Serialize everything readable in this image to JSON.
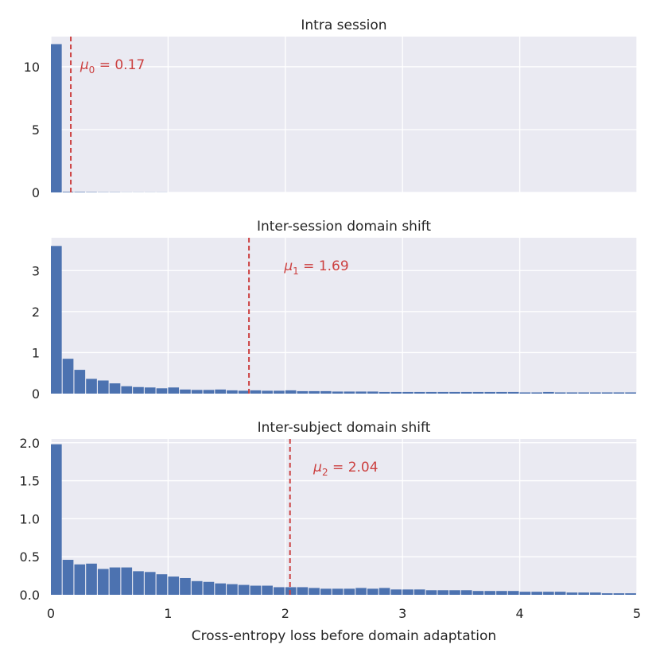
{
  "chart_data": {
    "type": "bar",
    "xlabel": "Cross-entropy loss before domain adaptation",
    "xlim": [
      0,
      5
    ],
    "x_ticks": [
      "0",
      "1",
      "2",
      "3",
      "4",
      "5"
    ],
    "bin_width": 0.1,
    "colors": {
      "bar": "#4c72b0",
      "mean_line": "#cc4141",
      "panel_bg": "#eaeaf2",
      "grid": "#ffffff"
    },
    "panels": [
      {
        "title": "Intra session",
        "ylim": [
          0,
          12.4
        ],
        "y_ticks": [
          {
            "value": 0,
            "label": "0"
          },
          {
            "value": 5,
            "label": "5"
          },
          {
            "value": 10,
            "label": "10"
          }
        ],
        "mean": 0.17,
        "mean_label": {
          "symbol": "μ",
          "sub": "0",
          "rest": " = 0.17"
        },
        "label_offset": 0.08,
        "values": [
          11.8,
          0.05,
          0.04,
          0.03,
          0.02,
          0.02,
          0.01,
          0.01,
          0.01,
          0.01,
          0,
          0,
          0,
          0,
          0,
          0,
          0,
          0,
          0,
          0,
          0,
          0,
          0,
          0,
          0,
          0,
          0,
          0,
          0,
          0,
          0,
          0,
          0,
          0,
          0,
          0,
          0,
          0,
          0,
          0,
          0,
          0,
          0,
          0,
          0,
          0,
          0,
          0,
          0,
          0
        ]
      },
      {
        "title": "Inter-session domain shift",
        "ylim": [
          0,
          3.8
        ],
        "y_ticks": [
          {
            "value": 0,
            "label": "0"
          },
          {
            "value": 1,
            "label": "1"
          },
          {
            "value": 2,
            "label": "2"
          },
          {
            "value": 3,
            "label": "3"
          }
        ],
        "mean": 1.69,
        "mean_label": {
          "symbol": "μ",
          "sub": "1",
          "rest": " = 1.69"
        },
        "label_offset": 0.3,
        "values": [
          3.6,
          0.85,
          0.58,
          0.36,
          0.32,
          0.25,
          0.18,
          0.16,
          0.15,
          0.13,
          0.15,
          0.1,
          0.09,
          0.09,
          0.1,
          0.08,
          0.07,
          0.08,
          0.07,
          0.07,
          0.08,
          0.06,
          0.06,
          0.06,
          0.05,
          0.05,
          0.05,
          0.05,
          0.04,
          0.04,
          0.04,
          0.04,
          0.04,
          0.04,
          0.04,
          0.04,
          0.04,
          0.04,
          0.04,
          0.04,
          0.03,
          0.03,
          0.04,
          0.03,
          0.03,
          0.03,
          0.03,
          0.03,
          0.03,
          0.03
        ]
      },
      {
        "title": "Inter-subject domain shift",
        "ylim": [
          0,
          2.05
        ],
        "y_ticks": [
          {
            "value": 0,
            "label": "0.0"
          },
          {
            "value": 0.5,
            "label": "0.5"
          },
          {
            "value": 1.0,
            "label": "1.0"
          },
          {
            "value": 1.5,
            "label": "1.5"
          },
          {
            "value": 2.0,
            "label": "2.0"
          }
        ],
        "mean": 2.04,
        "mean_label": {
          "symbol": "μ",
          "sub": "2",
          "rest": " = 2.04"
        },
        "label_offset": 0.2,
        "values": [
          1.98,
          0.46,
          0.4,
          0.41,
          0.34,
          0.36,
          0.36,
          0.31,
          0.3,
          0.27,
          0.24,
          0.22,
          0.18,
          0.17,
          0.15,
          0.14,
          0.13,
          0.12,
          0.12,
          0.1,
          0.1,
          0.1,
          0.09,
          0.08,
          0.08,
          0.08,
          0.09,
          0.08,
          0.09,
          0.07,
          0.07,
          0.07,
          0.06,
          0.06,
          0.06,
          0.06,
          0.05,
          0.05,
          0.05,
          0.05,
          0.04,
          0.04,
          0.04,
          0.04,
          0.03,
          0.03,
          0.03,
          0.02,
          0.02,
          0.02
        ]
      }
    ]
  }
}
